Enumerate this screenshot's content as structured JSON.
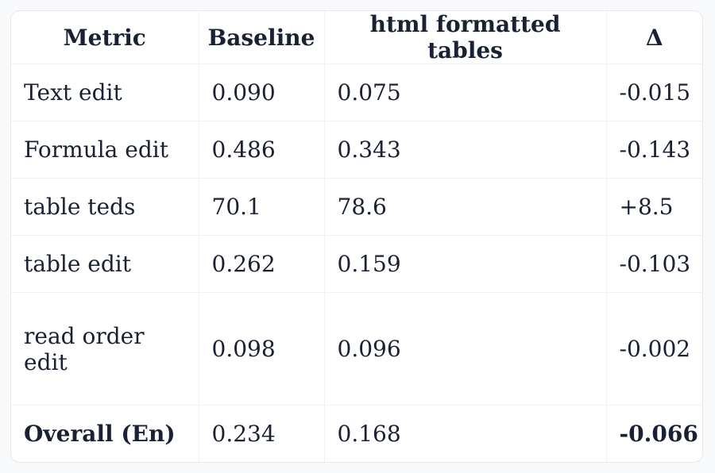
{
  "page": {
    "background_color": "#f8f9fa",
    "card_color": "#ffffff",
    "border_color": "#f0f1f3",
    "text_color": "#1b2134"
  },
  "table": {
    "columns": [
      {
        "key": "metric",
        "label": "Metric"
      },
      {
        "key": "baseline",
        "label": "Baseline"
      },
      {
        "key": "variant",
        "label": "html formatted tables"
      },
      {
        "key": "delta",
        "label": "Δ"
      }
    ],
    "rows": [
      {
        "metric": "Text edit",
        "baseline": "0.090",
        "variant": "0.075",
        "delta": "-0.015"
      },
      {
        "metric": "Formula edit",
        "baseline": "0.486",
        "variant": "0.343",
        "delta": "-0.143"
      },
      {
        "metric": "table teds",
        "baseline": "70.1",
        "variant": "78.6",
        "delta": "+8.5"
      },
      {
        "metric": "table edit",
        "baseline": "0.262",
        "variant": "0.159",
        "delta": "-0.103"
      },
      {
        "metric": "read order edit",
        "baseline": "0.098",
        "variant": "0.096",
        "delta": "-0.002"
      },
      {
        "metric": "Overall (En)",
        "baseline": "0.234",
        "variant": "0.168",
        "delta": "-0.066"
      }
    ]
  },
  "chart_data": {
    "type": "table",
    "title": "",
    "columns": [
      "Metric",
      "Baseline",
      "html formatted tables",
      "Δ"
    ],
    "rows": [
      [
        "Text edit",
        0.09,
        0.075,
        -0.015
      ],
      [
        "Formula edit",
        0.486,
        0.343,
        -0.143
      ],
      [
        "table teds",
        70.1,
        78.6,
        8.5
      ],
      [
        "table edit",
        0.262,
        0.159,
        -0.103
      ],
      [
        "read order edit",
        0.098,
        0.096,
        -0.002
      ],
      [
        "Overall (En)",
        0.234,
        0.168,
        -0.066
      ]
    ],
    "notes": "Last row (Overall) metric name and delta rendered bold; positive delta prefixed with +, negatives with -."
  }
}
